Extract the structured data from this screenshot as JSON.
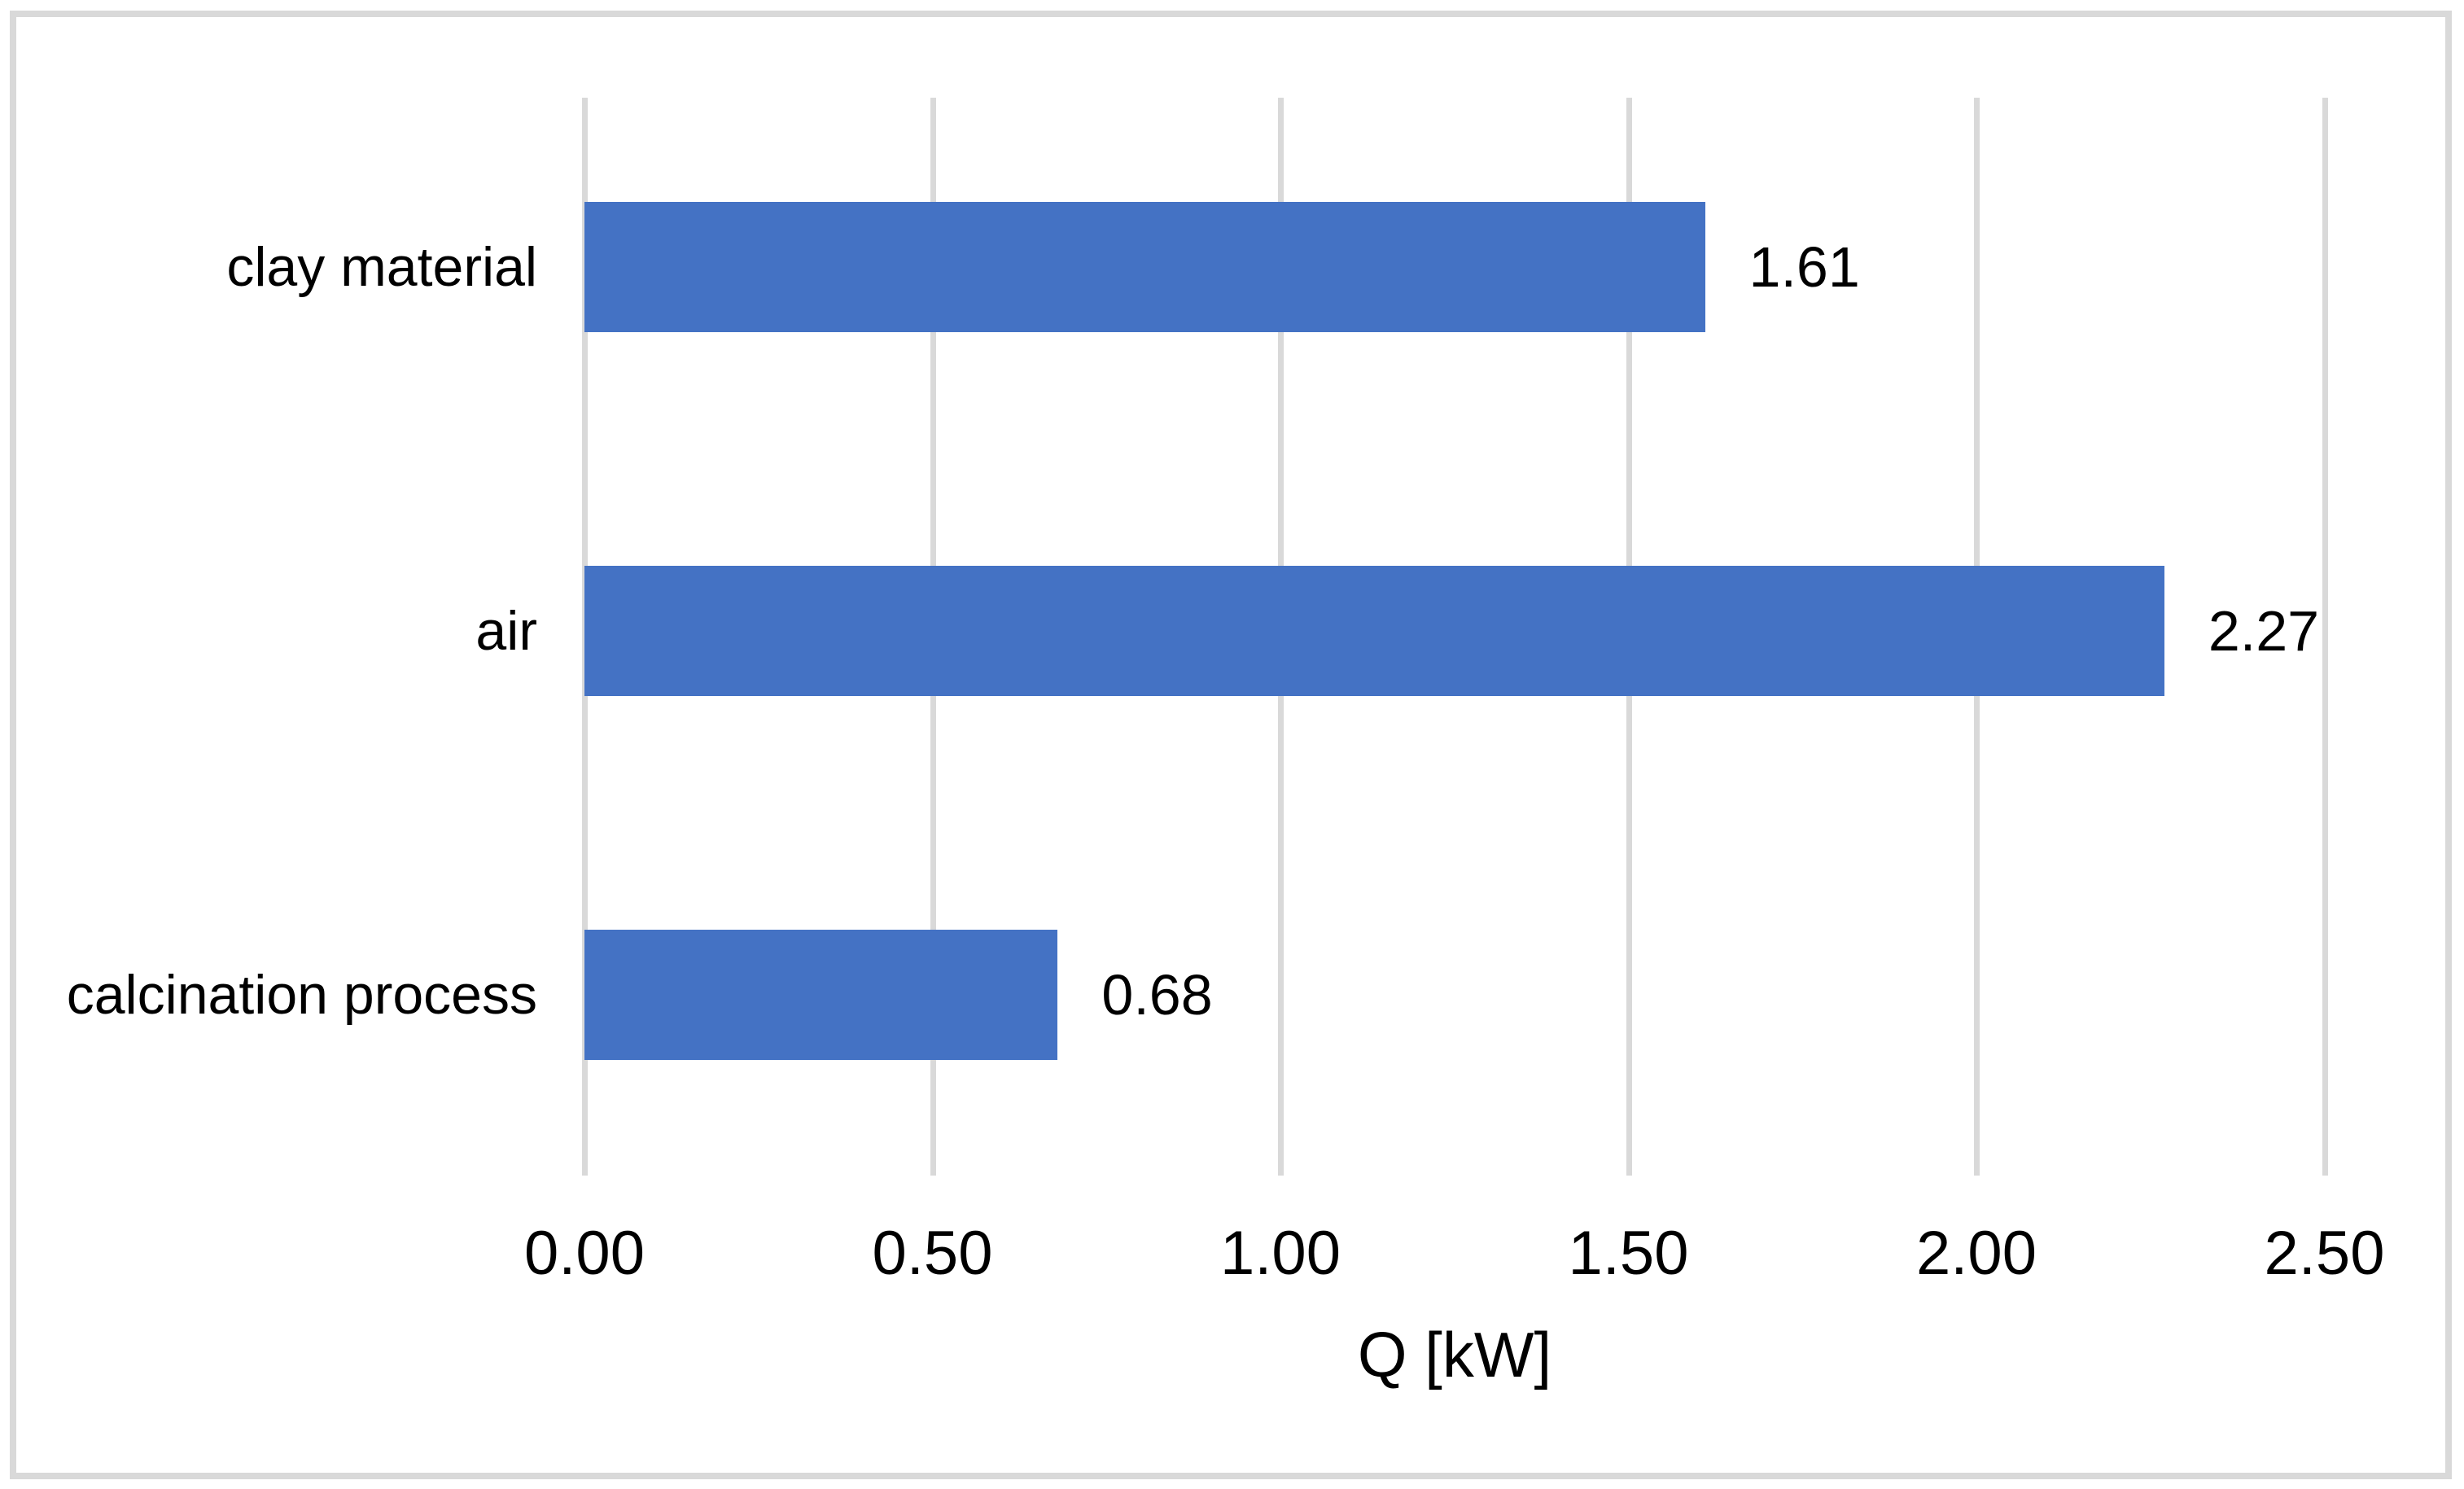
{
  "chart_data": {
    "type": "bar",
    "orientation": "horizontal",
    "title": "",
    "xlabel": "Q [kW]",
    "ylabel": "",
    "categories": [
      "clay material",
      "air",
      "calcination process"
    ],
    "values": [
      1.61,
      2.27,
      0.68
    ],
    "value_labels": [
      "1.61",
      "2.27",
      "0.68"
    ],
    "xlim": [
      0,
      2.5
    ],
    "xticks": [
      0,
      0.5,
      1.0,
      1.5,
      2.0,
      2.5
    ],
    "xtick_labels": [
      "0.00",
      "0.50",
      "1.00",
      "1.50",
      "2.00",
      "2.50"
    ],
    "grid": "vertical-only",
    "legend": "none"
  },
  "colors": {
    "bar": "#4472C4",
    "gridline": "#D9D9D9",
    "frame": "#D9D9D9",
    "text": "#000000",
    "background": "#FFFFFF"
  }
}
